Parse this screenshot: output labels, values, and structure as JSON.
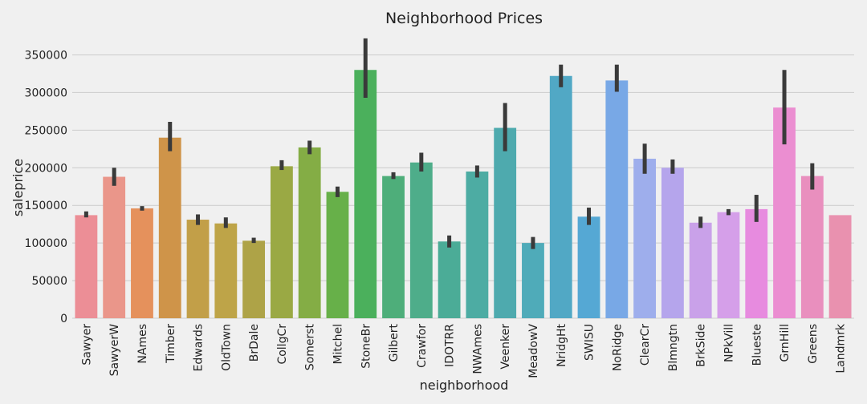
{
  "chart_data": {
    "type": "bar",
    "title": "Neighborhood Prices",
    "xlabel": "neighborhood",
    "ylabel": "saleprice",
    "ylim": [
      0,
      375000
    ],
    "yticks": [
      0,
      50000,
      100000,
      150000,
      200000,
      250000,
      300000,
      350000
    ],
    "grid": "horizontal",
    "legend": "none",
    "error_bars": true,
    "categories": [
      "Sawyer",
      "SawyerW",
      "NAmes",
      "Timber",
      "Edwards",
      "OldTown",
      "BrDale",
      "CollgCr",
      "Somerst",
      "Mitchel",
      "StoneBr",
      "Gilbert",
      "Crawfor",
      "IDOTRR",
      "NWAmes",
      "Veenker",
      "MeadowV",
      "NridgHt",
      "SWISU",
      "NoRidge",
      "ClearCr",
      "Blmngtn",
      "BrkSide",
      "NPkVill",
      "Blueste",
      "GrnHill",
      "Greens",
      "Landmrk"
    ],
    "values": [
      137000,
      188000,
      146000,
      240000,
      131000,
      126000,
      103000,
      202000,
      227000,
      168000,
      330000,
      189000,
      207000,
      102000,
      195000,
      253000,
      100000,
      322000,
      135000,
      316000,
      212000,
      200000,
      127000,
      141000,
      145000,
      280000,
      189000,
      137000
    ],
    "ci_low": [
      134000,
      176000,
      143000,
      222000,
      124000,
      120000,
      100000,
      197000,
      218000,
      161000,
      293000,
      185000,
      195000,
      94000,
      187000,
      222000,
      92000,
      307000,
      124000,
      301000,
      192000,
      192000,
      120000,
      137000,
      128000,
      231000,
      171000,
      137000
    ],
    "ci_high": [
      142000,
      200000,
      149000,
      261000,
      138000,
      134000,
      107000,
      210000,
      236000,
      175000,
      372000,
      194000,
      220000,
      110000,
      203000,
      286000,
      108000,
      337000,
      147000,
      337000,
      232000,
      211000,
      135000,
      145000,
      164000,
      330000,
      206000,
      137000
    ],
    "colors": [
      "#ec8e96",
      "#ea968a",
      "#e5915c",
      "#cf9449",
      "#c29f48",
      "#bea448",
      "#aea347",
      "#9aa944",
      "#84ad45",
      "#67b049",
      "#4bb05c",
      "#4eae7a",
      "#4ead8a",
      "#4bac97",
      "#4daca3",
      "#4eaaae",
      "#4fabb9",
      "#51a8c5",
      "#55a8d4",
      "#78a8e6",
      "#9eaeec",
      "#b5a5ec",
      "#c9a1e9",
      "#d59fe9",
      "#e78bdf",
      "#eb8ed1",
      "#e98fbe",
      "#e991af"
    ]
  }
}
